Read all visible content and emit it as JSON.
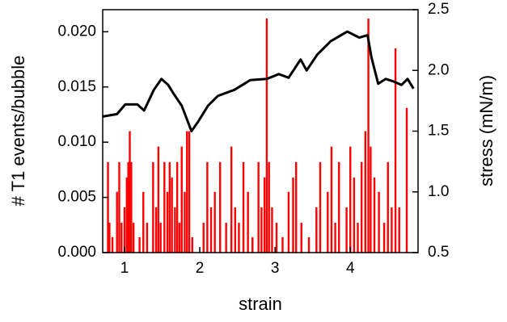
{
  "chart_data": {
    "type": "combo",
    "xlabel": "strain",
    "ylabel": "# T1 events/bubble",
    "y2label": "stress (mN/m)",
    "xlim": [
      0.71,
      4.9
    ],
    "xticks": [
      1,
      2,
      3,
      4
    ],
    "ylim": [
      0,
      0.022
    ],
    "yticks": [
      {
        "value": 0,
        "label": "0.000"
      },
      {
        "value": 0.005,
        "label": "0.005"
      },
      {
        "value": 0.01,
        "label": "0.010"
      },
      {
        "value": 0.015,
        "label": "0.015"
      },
      {
        "value": 0.02,
        "label": "0.020"
      }
    ],
    "y2lim": [
      0.5,
      2.5
    ],
    "y2ticks": [
      0.5,
      {
        "value": 1,
        "label": "1.0"
      },
      1.5,
      {
        "value": 2,
        "label": "2.0"
      },
      2.5
    ],
    "series": [
      {
        "type": "bar",
        "color": "#ff0000",
        "x": [
          0.78,
          0.8,
          0.84,
          0.9,
          0.93,
          0.96,
          1.0,
          1.03,
          1.05,
          1.07,
          1.09,
          1.12,
          1.2,
          1.25,
          1.3,
          1.38,
          1.42,
          1.45,
          1.48,
          1.53,
          1.57,
          1.6,
          1.63,
          1.67,
          1.7,
          1.73,
          1.76,
          1.8,
          1.83,
          1.86,
          1.9,
          2.05,
          2.1,
          2.15,
          2.2,
          2.27,
          2.35,
          2.42,
          2.47,
          2.52,
          2.58,
          2.64,
          2.7,
          2.78,
          2.82,
          2.86,
          2.89,
          2.92,
          2.96,
          3.02,
          3.1,
          3.18,
          3.24,
          3.28,
          3.35,
          3.45,
          3.55,
          3.6,
          3.7,
          3.75,
          3.8,
          3.85,
          3.95,
          4.0,
          4.05,
          4.1,
          4.15,
          4.2,
          4.24,
          4.27,
          4.32,
          4.38,
          4.45,
          4.5,
          4.55,
          4.6,
          4.65,
          4.75
        ],
        "values": [
          0.0082,
          0.0027,
          0.0014,
          0.0055,
          0.0082,
          0.0027,
          0.0041,
          0.0068,
          0.0082,
          0.011,
          0.0082,
          0.0027,
          0.0014,
          0.0055,
          0.0027,
          0.0082,
          0.0041,
          0.0096,
          0.0027,
          0.0082,
          0.0055,
          0.0082,
          0.0068,
          0.0041,
          0.0082,
          0.0027,
          0.0096,
          0.0055,
          0.011,
          0.011,
          0.0014,
          0.0027,
          0.0082,
          0.0041,
          0.0055,
          0.0082,
          0.0027,
          0.0096,
          0.0041,
          0.0027,
          0.0082,
          0.0055,
          0.0014,
          0.0082,
          0.0041,
          0.0068,
          0.0212,
          0.0082,
          0.0041,
          0.0027,
          0.0014,
          0.0055,
          0.0068,
          0.0082,
          0.0027,
          0.0014,
          0.0041,
          0.0082,
          0.0055,
          0.0096,
          0.0027,
          0.0082,
          0.0041,
          0.0096,
          0.0068,
          0.0027,
          0.0082,
          0.011,
          0.0212,
          0.0096,
          0.0068,
          0.0055,
          0.0027,
          0.0082,
          0.0041,
          0.0185,
          0.0041,
          0.0131
        ]
      },
      {
        "type": "line",
        "axis": "y2",
        "color": "#000000",
        "x": [
          0.71,
          0.9,
          1.01,
          1.17,
          1.26,
          1.39,
          1.49,
          1.58,
          1.65,
          1.76,
          1.89,
          1.98,
          2.11,
          2.24,
          2.46,
          2.67,
          2.89,
          3.05,
          3.18,
          3.34,
          3.42,
          3.56,
          3.74,
          3.96,
          4.12,
          4.23,
          4.28,
          4.37,
          4.47,
          4.57,
          4.68,
          4.76,
          4.84
        ],
        "values": [
          1.62,
          1.64,
          1.72,
          1.72,
          1.67,
          1.84,
          1.93,
          1.88,
          1.81,
          1.71,
          1.5,
          1.58,
          1.71,
          1.79,
          1.84,
          1.92,
          1.93,
          1.97,
          1.94,
          2.09,
          2.0,
          2.13,
          2.24,
          2.32,
          2.27,
          2.29,
          2.11,
          1.89,
          1.93,
          1.91,
          1.88,
          1.93,
          1.85
        ]
      }
    ]
  }
}
